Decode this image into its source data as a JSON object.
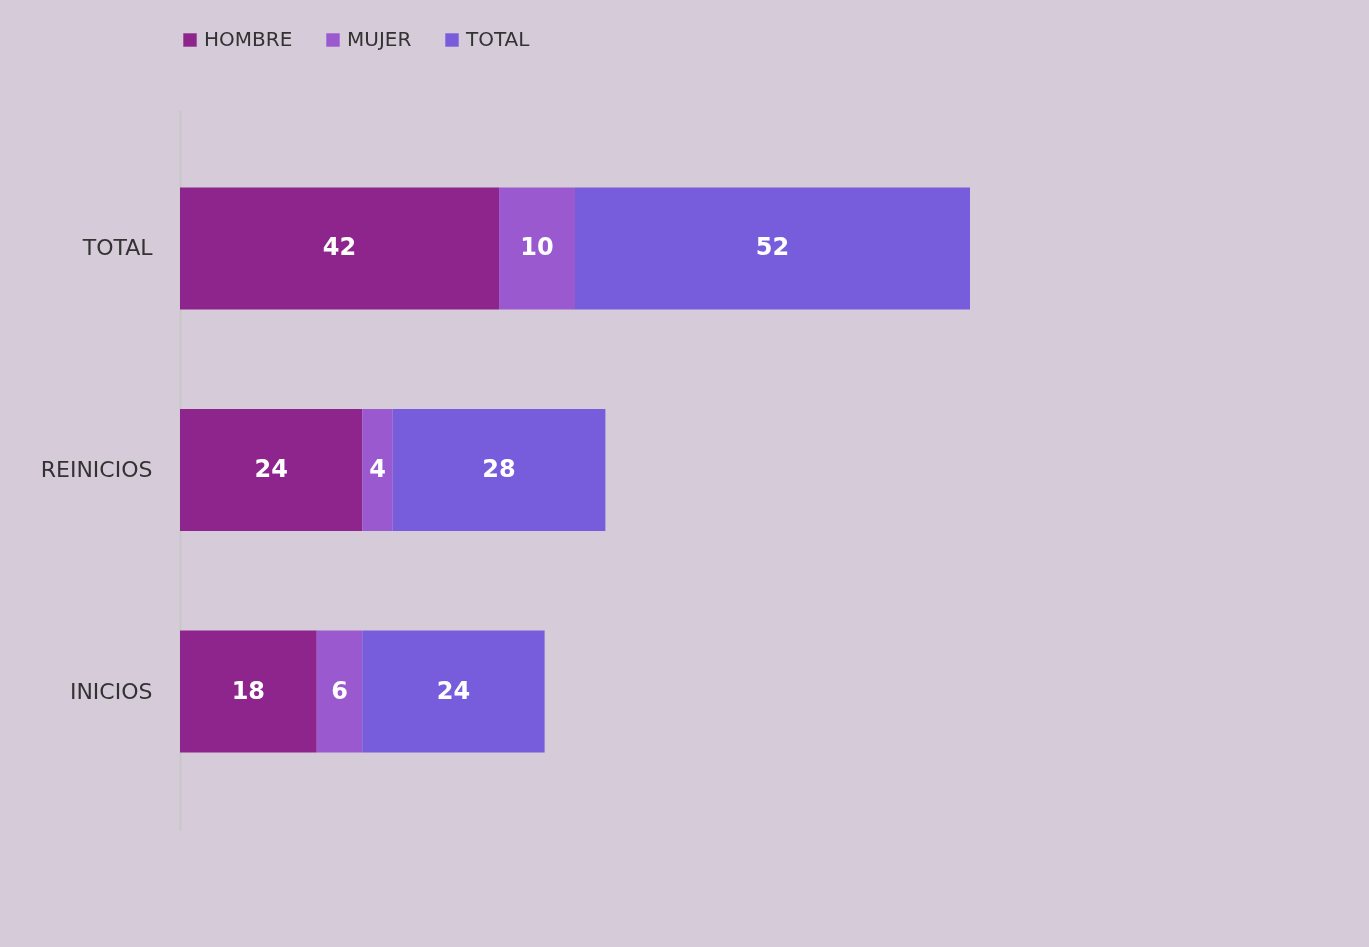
{
  "chart_data": {
    "type": "bar",
    "orientation": "horizontal",
    "stacked": true,
    "legend": "top",
    "grid": false,
    "data_labels": true,
    "categories": [
      "TOTAL",
      "REINICIOS",
      "INICIOS"
    ],
    "series": [
      {
        "name": "HOMBRE",
        "color": "#8e258d",
        "values": [
          42,
          24,
          18
        ]
      },
      {
        "name": "MUJER",
        "color": "#9b59d0",
        "values": [
          10,
          4,
          6
        ]
      },
      {
        "name": "TOTAL",
        "color": "#775ddb",
        "values": [
          52,
          28,
          24
        ]
      }
    ]
  }
}
